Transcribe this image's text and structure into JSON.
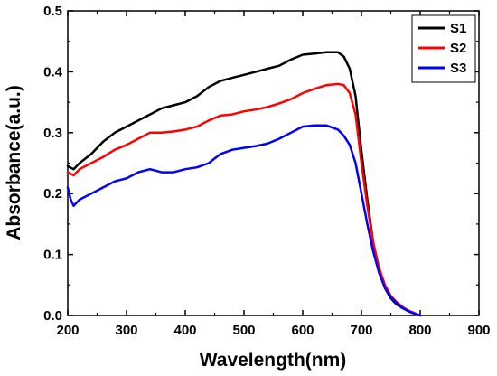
{
  "chart_data": {
    "type": "line",
    "title": "",
    "xlabel": "Wavelength(nm)",
    "ylabel": "Absorbance(a.u.)",
    "xlim": [
      200,
      900
    ],
    "ylim": [
      0.0,
      0.5
    ],
    "x_ticks": [
      "200",
      "300",
      "400",
      "500",
      "600",
      "700",
      "800",
      "900"
    ],
    "y_ticks": [
      "0.0",
      "0.1",
      "0.2",
      "0.3",
      "0.4",
      "0.5"
    ],
    "grid": false,
    "legend_position": "top-right",
    "series": [
      {
        "name": "S1",
        "color": "#000000",
        "x": [
          200,
          210,
          220,
          240,
          260,
          280,
          300,
          320,
          340,
          360,
          380,
          400,
          420,
          440,
          460,
          480,
          500,
          520,
          540,
          560,
          580,
          600,
          620,
          640,
          660,
          670,
          680,
          690,
          700,
          710,
          720,
          730,
          740,
          750,
          760,
          770,
          780,
          790,
          800
        ],
        "y": [
          0.245,
          0.24,
          0.25,
          0.265,
          0.285,
          0.3,
          0.31,
          0.32,
          0.33,
          0.34,
          0.345,
          0.35,
          0.36,
          0.375,
          0.385,
          0.39,
          0.395,
          0.4,
          0.405,
          0.41,
          0.42,
          0.428,
          0.43,
          0.432,
          0.432,
          0.425,
          0.405,
          0.36,
          0.27,
          0.19,
          0.12,
          0.075,
          0.045,
          0.028,
          0.018,
          0.012,
          0.007,
          0.003,
          0.0
        ]
      },
      {
        "name": "S2",
        "color": "#ff0000",
        "x": [
          200,
          210,
          220,
          240,
          260,
          280,
          300,
          320,
          340,
          360,
          380,
          400,
          420,
          440,
          460,
          480,
          500,
          520,
          540,
          560,
          580,
          600,
          620,
          640,
          660,
          670,
          680,
          690,
          700,
          710,
          720,
          730,
          740,
          750,
          760,
          770,
          780,
          790,
          800
        ],
        "y": [
          0.235,
          0.23,
          0.24,
          0.25,
          0.26,
          0.272,
          0.28,
          0.29,
          0.3,
          0.3,
          0.302,
          0.305,
          0.31,
          0.32,
          0.328,
          0.33,
          0.335,
          0.338,
          0.342,
          0.348,
          0.355,
          0.365,
          0.372,
          0.378,
          0.38,
          0.378,
          0.365,
          0.33,
          0.25,
          0.18,
          0.12,
          0.078,
          0.05,
          0.032,
          0.022,
          0.014,
          0.008,
          0.004,
          0.0
        ]
      },
      {
        "name": "S3",
        "color": "#0000ff",
        "x": [
          200,
          205,
          210,
          220,
          240,
          260,
          280,
          300,
          320,
          340,
          360,
          380,
          400,
          420,
          440,
          460,
          480,
          500,
          520,
          540,
          560,
          580,
          600,
          620,
          640,
          660,
          670,
          680,
          690,
          700,
          710,
          720,
          730,
          740,
          750,
          760,
          770,
          780,
          790,
          800
        ],
        "y": [
          0.21,
          0.19,
          0.18,
          0.19,
          0.2,
          0.21,
          0.22,
          0.225,
          0.235,
          0.24,
          0.235,
          0.235,
          0.24,
          0.243,
          0.25,
          0.265,
          0.272,
          0.275,
          0.278,
          0.282,
          0.29,
          0.3,
          0.31,
          0.312,
          0.312,
          0.305,
          0.295,
          0.28,
          0.25,
          0.2,
          0.15,
          0.105,
          0.07,
          0.045,
          0.03,
          0.02,
          0.012,
          0.007,
          0.003,
          0.0
        ]
      }
    ]
  }
}
